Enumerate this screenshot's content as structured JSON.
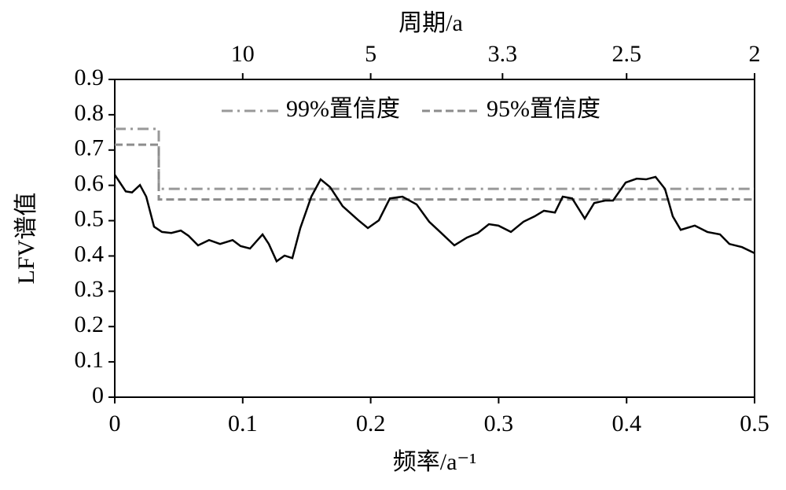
{
  "chart_data": {
    "type": "line",
    "xlabel": "频率/a⁻¹",
    "ylabel": "LFV谱值",
    "x2label": "周期/a",
    "xlim": [
      0,
      0.5
    ],
    "xticks": [
      0,
      0.1,
      0.2,
      0.3,
      0.4,
      0.5
    ],
    "ylim": [
      0,
      0.9
    ],
    "yticks": [
      0,
      0.1,
      0.2,
      0.3,
      0.4,
      0.5,
      0.6,
      0.7,
      0.8,
      0.9
    ],
    "x2scale": "reciprocal",
    "x2ticks": [
      10,
      5,
      3.3,
      2.5,
      2
    ],
    "legend": "top",
    "series": [
      {
        "name": "99%置信度",
        "color": "#999999",
        "dash": "dashdot",
        "legend": true,
        "x": [
          0,
          0.0344,
          0.0344,
          0.5
        ],
        "values": [
          0.76,
          0.76,
          0.59,
          0.59
        ]
      },
      {
        "name": "95%置信度",
        "color": "#8c8c8c",
        "dash": "dashed",
        "legend": true,
        "x": [
          0,
          0.0344,
          0.0344,
          0.5
        ],
        "values": [
          0.715,
          0.715,
          0.56,
          0.56
        ]
      },
      {
        "name": "LFV",
        "color": "#000000",
        "dash": "solid",
        "legend": false,
        "x": [
          0,
          0.0086,
          0.0135,
          0.0197,
          0.0246,
          0.0307,
          0.0369,
          0.0442,
          0.0516,
          0.0577,
          0.0651,
          0.0737,
          0.0823,
          0.0921,
          0.0983,
          0.1057,
          0.1155,
          0.1204,
          0.1265,
          0.1327,
          0.1388,
          0.145,
          0.1536,
          0.1609,
          0.1683,
          0.1781,
          0.1904,
          0.1978,
          0.2064,
          0.215,
          0.2248,
          0.2359,
          0.2457,
          0.2543,
          0.2654,
          0.2752,
          0.2838,
          0.2924,
          0.2998,
          0.3096,
          0.3194,
          0.328,
          0.3354,
          0.344,
          0.3501,
          0.3575,
          0.3673,
          0.3747,
          0.3833,
          0.3894,
          0.3993,
          0.4079,
          0.4152,
          0.4226,
          0.43,
          0.4361,
          0.4423,
          0.4533,
          0.4631,
          0.473,
          0.4803,
          0.4902,
          0.5
        ],
        "values": [
          0.63,
          0.583,
          0.58,
          0.601,
          0.568,
          0.483,
          0.468,
          0.465,
          0.472,
          0.457,
          0.43,
          0.445,
          0.434,
          0.445,
          0.428,
          0.421,
          0.461,
          0.434,
          0.385,
          0.401,
          0.394,
          0.479,
          0.568,
          0.617,
          0.595,
          0.541,
          0.501,
          0.479,
          0.501,
          0.563,
          0.568,
          0.546,
          0.497,
          0.468,
          0.43,
          0.452,
          0.465,
          0.49,
          0.486,
          0.468,
          0.497,
          0.512,
          0.528,
          0.523,
          0.568,
          0.563,
          0.506,
          0.55,
          0.557,
          0.557,
          0.608,
          0.619,
          0.617,
          0.624,
          0.59,
          0.512,
          0.474,
          0.486,
          0.468,
          0.461,
          0.434,
          0.425,
          0.408
        ]
      }
    ]
  }
}
